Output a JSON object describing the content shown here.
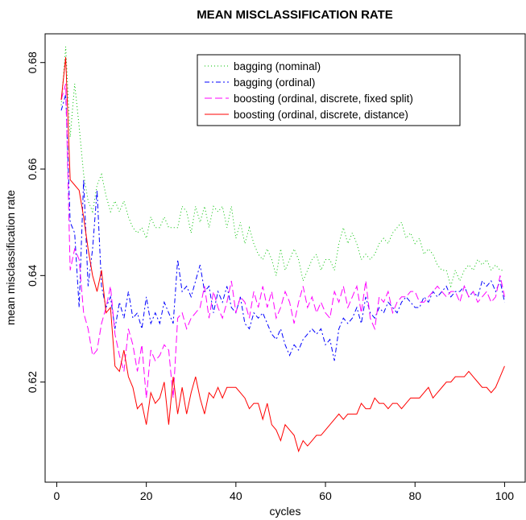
{
  "chart_data": {
    "type": "line",
    "title": "MEAN MISCLASSIFICATION RATE",
    "xlabel": "cycles",
    "ylabel": "mean misclassification rate",
    "xlim": [
      1,
      100
    ],
    "ylim": [
      0.605,
      0.683
    ],
    "x_ticks": [
      0,
      20,
      40,
      60,
      80,
      100
    ],
    "y_ticks": [
      0.62,
      0.64,
      0.66,
      0.68
    ],
    "legend_position": "top-right",
    "grid": false,
    "series": [
      {
        "name": "bagging (nominal)",
        "color": "#00c000",
        "dash": "1,3",
        "values": [
          0.672,
          0.683,
          0.666,
          0.676,
          0.668,
          0.659,
          0.654,
          0.652,
          0.657,
          0.659,
          0.655,
          0.652,
          0.654,
          0.652,
          0.654,
          0.651,
          0.649,
          0.648,
          0.649,
          0.647,
          0.651,
          0.649,
          0.649,
          0.651,
          0.649,
          0.649,
          0.649,
          0.653,
          0.652,
          0.648,
          0.653,
          0.65,
          0.653,
          0.649,
          0.653,
          0.652,
          0.653,
          0.649,
          0.653,
          0.647,
          0.65,
          0.646,
          0.649,
          0.646,
          0.644,
          0.643,
          0.645,
          0.643,
          0.64,
          0.645,
          0.641,
          0.643,
          0.645,
          0.643,
          0.639,
          0.641,
          0.643,
          0.644,
          0.641,
          0.643,
          0.643,
          0.641,
          0.646,
          0.649,
          0.646,
          0.648,
          0.646,
          0.643,
          0.644,
          0.643,
          0.644,
          0.646,
          0.647,
          0.646,
          0.648,
          0.649,
          0.65,
          0.647,
          0.648,
          0.646,
          0.647,
          0.644,
          0.645,
          0.644,
          0.642,
          0.641,
          0.641,
          0.638,
          0.641,
          0.639,
          0.641,
          0.642,
          0.641,
          0.643,
          0.642,
          0.643,
          0.641,
          0.642,
          0.641,
          0.641
        ]
      },
      {
        "name": "bagging (ordinal)",
        "color": "#0000ff",
        "dash": "6,3,2,3",
        "values": [
          0.671,
          0.674,
          0.65,
          0.648,
          0.634,
          0.658,
          0.638,
          0.645,
          0.656,
          0.638,
          0.634,
          0.636,
          0.63,
          0.635,
          0.632,
          0.637,
          0.632,
          0.633,
          0.63,
          0.636,
          0.631,
          0.633,
          0.631,
          0.635,
          0.633,
          0.631,
          0.643,
          0.637,
          0.638,
          0.636,
          0.639,
          0.642,
          0.637,
          0.638,
          0.633,
          0.637,
          0.635,
          0.638,
          0.634,
          0.633,
          0.636,
          0.631,
          0.63,
          0.633,
          0.632,
          0.633,
          0.631,
          0.629,
          0.628,
          0.63,
          0.627,
          0.625,
          0.627,
          0.626,
          0.628,
          0.629,
          0.63,
          0.629,
          0.63,
          0.627,
          0.628,
          0.624,
          0.63,
          0.632,
          0.631,
          0.632,
          0.634,
          0.631,
          0.636,
          0.633,
          0.632,
          0.634,
          0.633,
          0.635,
          0.634,
          0.633,
          0.635,
          0.636,
          0.635,
          0.634,
          0.634,
          0.636,
          0.635,
          0.637,
          0.636,
          0.637,
          0.638,
          0.636,
          0.637,
          0.637,
          0.638,
          0.636,
          0.637,
          0.636,
          0.639,
          0.638,
          0.639,
          0.637,
          0.639,
          0.635
        ]
      },
      {
        "name": "boosting (ordinal, discrete, fixed split)",
        "color": "#ff00ff",
        "dash": "9,4",
        "values": [
          0.673,
          0.676,
          0.641,
          0.645,
          0.643,
          0.633,
          0.63,
          0.625,
          0.626,
          0.631,
          0.634,
          0.638,
          0.629,
          0.625,
          0.622,
          0.63,
          0.627,
          0.622,
          0.627,
          0.617,
          0.626,
          0.624,
          0.625,
          0.627,
          0.626,
          0.617,
          0.632,
          0.633,
          0.63,
          0.632,
          0.633,
          0.634,
          0.638,
          0.632,
          0.637,
          0.634,
          0.632,
          0.635,
          0.639,
          0.633,
          0.636,
          0.635,
          0.632,
          0.637,
          0.634,
          0.638,
          0.634,
          0.637,
          0.632,
          0.634,
          0.637,
          0.635,
          0.631,
          0.635,
          0.638,
          0.634,
          0.636,
          0.633,
          0.635,
          0.633,
          0.632,
          0.637,
          0.635,
          0.638,
          0.634,
          0.636,
          0.638,
          0.633,
          0.639,
          0.632,
          0.63,
          0.636,
          0.635,
          0.637,
          0.633,
          0.635,
          0.636,
          0.636,
          0.637,
          0.637,
          0.635,
          0.635,
          0.636,
          0.637,
          0.638,
          0.637,
          0.636,
          0.637,
          0.637,
          0.635,
          0.638,
          0.636,
          0.637,
          0.635,
          0.636,
          0.637,
          0.635,
          0.636,
          0.64,
          0.636
        ]
      },
      {
        "name": "boosting (ordinal, discrete, distance)",
        "color": "#ff0000",
        "dash": "",
        "values": [
          0.673,
          0.681,
          0.658,
          0.657,
          0.656,
          0.651,
          0.645,
          0.64,
          0.637,
          0.641,
          0.633,
          0.634,
          0.623,
          0.622,
          0.626,
          0.621,
          0.619,
          0.615,
          0.616,
          0.612,
          0.618,
          0.616,
          0.617,
          0.62,
          0.612,
          0.621,
          0.614,
          0.619,
          0.614,
          0.618,
          0.621,
          0.617,
          0.614,
          0.618,
          0.617,
          0.619,
          0.617,
          0.619,
          0.619,
          0.619,
          0.618,
          0.617,
          0.615,
          0.616,
          0.616,
          0.613,
          0.616,
          0.612,
          0.611,
          0.609,
          0.612,
          0.611,
          0.61,
          0.607,
          0.609,
          0.608,
          0.609,
          0.61,
          0.61,
          0.611,
          0.612,
          0.613,
          0.614,
          0.613,
          0.614,
          0.614,
          0.614,
          0.616,
          0.615,
          0.615,
          0.617,
          0.616,
          0.616,
          0.615,
          0.616,
          0.616,
          0.615,
          0.616,
          0.617,
          0.617,
          0.617,
          0.618,
          0.619,
          0.617,
          0.618,
          0.619,
          0.62,
          0.62,
          0.621,
          0.621,
          0.621,
          0.622,
          0.621,
          0.62,
          0.619,
          0.619,
          0.618,
          0.619,
          0.621,
          0.623
        ]
      }
    ]
  }
}
